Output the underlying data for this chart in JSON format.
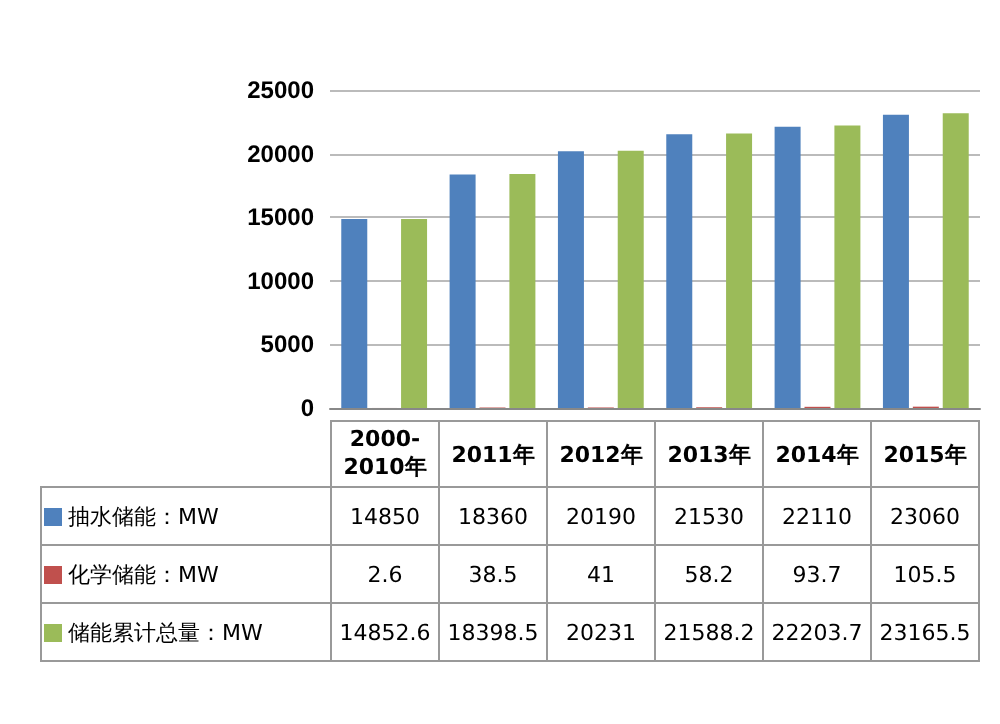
{
  "chart_data": {
    "type": "bar",
    "categories": [
      "2000-2010年",
      "2011年",
      "2012年",
      "2013年",
      "2014年",
      "2015年"
    ],
    "series": [
      {
        "name": "抽水储能：MW",
        "color": "#4f81bd",
        "values": [
          14850,
          18360,
          20190,
          21530,
          22110,
          23060
        ]
      },
      {
        "name": "化学储能：MW",
        "color": "#c0504d",
        "values": [
          2.6,
          38.5,
          41,
          58.2,
          93.7,
          105.5
        ]
      },
      {
        "name": "储能累计总量：MW",
        "color": "#9bbb59",
        "values": [
          14852.6,
          18398.5,
          20231,
          21588.2,
          22203.7,
          23165.5
        ]
      }
    ],
    "ylim": [
      0,
      25000
    ],
    "yticks": [
      0,
      5000,
      10000,
      15000,
      20000,
      25000
    ],
    "grid": "y",
    "legend": "bottom",
    "data_labels": true
  }
}
